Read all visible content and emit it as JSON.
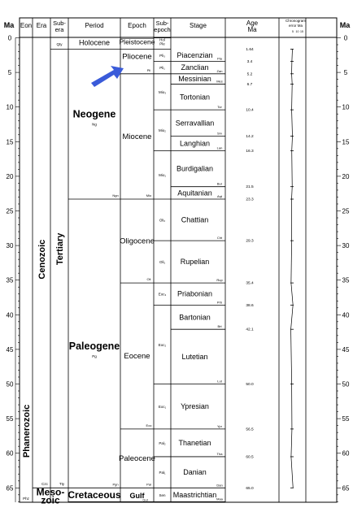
{
  "headers": {
    "ma_left": "Ma",
    "eon": "Eon",
    "era": "Era",
    "subera": "Sub-\nera",
    "period": "Period",
    "epoch": "Epoch",
    "subepoch": "Sub-\nepoch",
    "stage": "Stage",
    "age": "Age\nMa",
    "chronogram": "Chronogram\nerror Ma",
    "chronogram_ticks": [
      "5",
      "10",
      "15"
    ],
    "ma_right": "Ma"
  },
  "scale": {
    "min": 0,
    "max": 67,
    "ticks": [
      0,
      5,
      10,
      15,
      20,
      25,
      30,
      35,
      40,
      45,
      50,
      55,
      60,
      65
    ]
  },
  "eons": [
    {
      "name": "Phanerozoic",
      "abbr": "Phz"
    }
  ],
  "eras": [
    {
      "name": "Cenozoic",
      "abbr": "Cz",
      "start": 0,
      "end": 65
    },
    {
      "name": "Meso-\nzoic",
      "abbr": "Mz",
      "start": 65,
      "end": 67
    }
  ],
  "suberas": [
    {
      "name": "",
      "abbr": "Qty",
      "start": 0,
      "end": 1.64
    },
    {
      "name": "Tertiary",
      "abbr": "Tty",
      "start": 1.64,
      "end": 65
    }
  ],
  "periods": [
    {
      "name": "Holocene",
      "abbr": "",
      "start": 0,
      "end": 1.64
    },
    {
      "name": "Neogene",
      "abbr": "Ng",
      "start": 1.64,
      "end": 23.3,
      "code": "Ngn"
    },
    {
      "name": "Paleogene",
      "abbr": "Pg",
      "start": 23.3,
      "end": 65,
      "code": "Pgn"
    },
    {
      "name": "Cretaceous",
      "abbr": "K",
      "start": 65,
      "end": 67,
      "code": ""
    }
  ],
  "epochs": [
    {
      "name": "Pleistocene",
      "abbr": "Ple",
      "start": 0.01,
      "end": 1.64
    },
    {
      "name": "Pliocene",
      "abbr": "Pli",
      "start": 1.64,
      "end": 5.2
    },
    {
      "name": "Miocene",
      "abbr": "Mio",
      "start": 5.2,
      "end": 23.3
    },
    {
      "name": "Oligocene",
      "abbr": "Oli",
      "start": 23.3,
      "end": 35.4
    },
    {
      "name": "Eocene",
      "abbr": "Eoc",
      "start": 35.4,
      "end": 56.5
    },
    {
      "name": "Paleocene",
      "abbr": "Pal",
      "start": 56.5,
      "end": 65
    },
    {
      "name": "Gulf",
      "abbr": "Gul",
      "start": 65,
      "end": 67
    }
  ],
  "subepochs": [
    {
      "label": "Hol",
      "start": 0,
      "end": 0.01
    },
    {
      "label": "Ple",
      "start": 0.01,
      "end": 1.64
    },
    {
      "label": "Pli3",
      "start": 1.64,
      "end": 3.4
    },
    {
      "label": "Pli1",
      "start": 3.4,
      "end": 5.2
    },
    {
      "label": "Mio3",
      "start": 5.2,
      "end": 10.4
    },
    {
      "label": "Mio2",
      "start": 10.4,
      "end": 16.3
    },
    {
      "label": "Mio1",
      "start": 16.3,
      "end": 23.3
    },
    {
      "label": "Oli2",
      "start": 23.3,
      "end": 29.3
    },
    {
      "label": "Oli1",
      "start": 29.3,
      "end": 35.4
    },
    {
      "label": "Eoc3",
      "start": 35.4,
      "end": 38.6
    },
    {
      "label": "Eoc2",
      "start": 38.6,
      "end": 50.0
    },
    {
      "label": "Eoc1",
      "start": 50.0,
      "end": 56.5
    },
    {
      "label": "Pal2",
      "start": 56.5,
      "end": 60.5
    },
    {
      "label": "Pal1",
      "start": 60.5,
      "end": 65
    },
    {
      "label": "Sen",
      "start": 65,
      "end": 67
    }
  ],
  "stages": [
    {
      "name": "Piacenzian",
      "abbr": "Pia",
      "start": 1.64,
      "end": 3.4
    },
    {
      "name": "Zanclian",
      "abbr": "Zan",
      "start": 3.4,
      "end": 5.2
    },
    {
      "name": "Messinian",
      "abbr": "Mes",
      "start": 5.2,
      "end": 6.7
    },
    {
      "name": "Tortonian",
      "abbr": "Tor",
      "start": 6.7,
      "end": 10.4
    },
    {
      "name": "Serravallian",
      "abbr": "Srv",
      "start": 10.4,
      "end": 14.2
    },
    {
      "name": "Langhian",
      "abbr": "Lan",
      "start": 14.2,
      "end": 16.3
    },
    {
      "name": "Burdigalian",
      "abbr": "Bur",
      "start": 16.3,
      "end": 21.5
    },
    {
      "name": "Aquitanian",
      "abbr": "Aqt",
      "start": 21.5,
      "end": 23.3
    },
    {
      "name": "Chattian",
      "abbr": "Cht",
      "start": 23.3,
      "end": 29.3
    },
    {
      "name": "Rupelian",
      "abbr": "Rup",
      "start": 29.3,
      "end": 35.4
    },
    {
      "name": "Priabonian",
      "abbr": "Prb",
      "start": 35.4,
      "end": 38.6
    },
    {
      "name": "Bartonian",
      "abbr": "Brt",
      "start": 38.6,
      "end": 42.1
    },
    {
      "name": "Lutetian",
      "abbr": "Lut",
      "start": 42.1,
      "end": 50.0
    },
    {
      "name": "Ypresian",
      "abbr": "Ypr",
      "start": 50.0,
      "end": 56.5
    },
    {
      "name": "Thanetian",
      "abbr": "Tha",
      "start": 56.5,
      "end": 60.5
    },
    {
      "name": "Danian",
      "abbr": "Dan",
      "start": 60.5,
      "end": 65
    },
    {
      "name": "Maastrichtian",
      "abbr": "Maa",
      "start": 65,
      "end": 67
    }
  ],
  "ages": [
    {
      "value": 1.64,
      "label": "1.64"
    },
    {
      "value": 3.4,
      "label": "3.4"
    },
    {
      "value": 5.2,
      "label": "5.2"
    },
    {
      "value": 6.7,
      "label": "6.7"
    },
    {
      "value": 10.4,
      "label": "10.4"
    },
    {
      "value": 14.2,
      "label": "14.2"
    },
    {
      "value": 16.3,
      "label": "16.3"
    },
    {
      "value": 21.5,
      "label": "21.5"
    },
    {
      "value": 23.3,
      "label": "23.3"
    },
    {
      "value": 29.3,
      "label": "29.3"
    },
    {
      "value": 35.4,
      "label": "35.4"
    },
    {
      "value": 38.6,
      "label": "38.6"
    },
    {
      "value": 42.1,
      "label": "42.1"
    },
    {
      "value": 50.0,
      "label": "50.0"
    },
    {
      "value": 56.5,
      "label": "56.5"
    },
    {
      "value": 60.5,
      "label": "60.5"
    },
    {
      "value": 65.0,
      "label": "65.0"
    }
  ],
  "arrow_color": "#3a5bd9"
}
